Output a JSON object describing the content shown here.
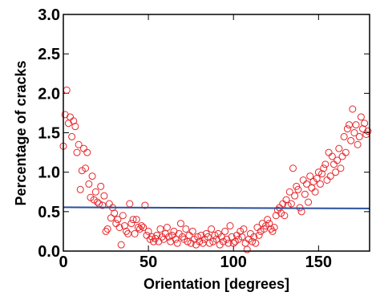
{
  "chart_data": {
    "type": "scatter",
    "x_label": "Orientation [degrees]",
    "y_label": "Percentage of cracks",
    "xlim": [
      0,
      180
    ],
    "xticks": [
      0,
      50,
      100,
      150
    ],
    "ylim": [
      0,
      3
    ],
    "yticks": [
      {
        "value": 0,
        "label": "0.0"
      },
      0.5,
      {
        "value": 1,
        "label": "1.0"
      },
      1.5,
      {
        "value": 2,
        "label": "2.0"
      },
      2.5,
      {
        "value": 3,
        "label": "3.0"
      }
    ],
    "series": [
      {
        "color": "#e8262b",
        "marker": "open-circle",
        "x": [
          0,
          1,
          2,
          3,
          4,
          5,
          6,
          7,
          8,
          9,
          10,
          11,
          12,
          13,
          14,
          15,
          16,
          17,
          18,
          19,
          20,
          21,
          22,
          23,
          24,
          25,
          26,
          27,
          28,
          29,
          30,
          31,
          32,
          33,
          34,
          35,
          36,
          37,
          38,
          39,
          40,
          41,
          42,
          43,
          44,
          45,
          46,
          47,
          48,
          49,
          50,
          51,
          52,
          53,
          54,
          55,
          56,
          57,
          58,
          59,
          60,
          61,
          62,
          63,
          64,
          65,
          66,
          67,
          68,
          69,
          70,
          71,
          72,
          73,
          74,
          75,
          76,
          77,
          78,
          79,
          80,
          81,
          82,
          83,
          84,
          85,
          86,
          87,
          88,
          89,
          90,
          91,
          92,
          93,
          94,
          95,
          96,
          97,
          98,
          99,
          100,
          101,
          102,
          103,
          104,
          105,
          106,
          107,
          108,
          109,
          110,
          111,
          112,
          113,
          114,
          115,
          116,
          117,
          118,
          119,
          120,
          121,
          122,
          123,
          124,
          125,
          126,
          127,
          128,
          129,
          130,
          131,
          132,
          133,
          134,
          135,
          136,
          137,
          138,
          139,
          140,
          141,
          142,
          143,
          144,
          145,
          146,
          147,
          148,
          149,
          150,
          151,
          152,
          153,
          154,
          155,
          156,
          157,
          158,
          159,
          160,
          161,
          162,
          163,
          164,
          165,
          166,
          167,
          168,
          169,
          170,
          171,
          172,
          173,
          174,
          175,
          176,
          177,
          178,
          179
        ],
        "values": [
          1.33,
          1.73,
          2.04,
          1.62,
          1.7,
          1.45,
          1.65,
          1.58,
          1.25,
          1.35,
          0.78,
          1.02,
          1.3,
          1.05,
          1.25,
          0.85,
          0.68,
          0.95,
          0.65,
          0.75,
          0.62,
          0.6,
          0.82,
          0.58,
          0.7,
          0.25,
          0.28,
          0.6,
          0.42,
          0.55,
          0.48,
          0.35,
          0.4,
          0.3,
          0.08,
          0.45,
          0.32,
          0.25,
          0.22,
          0.6,
          0.35,
          0.4,
          0.22,
          0.4,
          0.3,
          0.28,
          0.32,
          0.3,
          0.58,
          0.2,
          0.25,
          0.15,
          0.18,
          0.12,
          0.16,
          0.2,
          0.12,
          0.28,
          0.18,
          0.15,
          0.22,
          0.3,
          0.18,
          0.12,
          0.2,
          0.25,
          0.15,
          0.1,
          0.22,
          0.35,
          0.18,
          0.15,
          0.28,
          0.12,
          0.2,
          0.1,
          0.25,
          0.15,
          0.08,
          0.18,
          0.12,
          0.2,
          0.1,
          0.15,
          0.22,
          0.18,
          0.1,
          0.28,
          0.12,
          0.2,
          0.15,
          0.22,
          0.08,
          0.18,
          0.12,
          0.25,
          0.15,
          0.1,
          0.32,
          0.18,
          0.1,
          0.12,
          0.2,
          0.15,
          0.25,
          0.18,
          0.28,
          0.1,
          0.02,
          0.15,
          0.22,
          0.12,
          0.18,
          0.1,
          0.3,
          0.2,
          0.25,
          0.35,
          0.28,
          0.32,
          0.4,
          0.35,
          0.28,
          0.25,
          0.3,
          0.45,
          0.52,
          0.55,
          0.48,
          0.6,
          0.45,
          0.65,
          0.58,
          0.75,
          0.6,
          1.05,
          0.7,
          0.82,
          0.78,
          0.55,
          0.5,
          0.9,
          0.72,
          0.85,
          0.62,
          0.95,
          0.8,
          0.88,
          0.75,
          0.92,
          1.0,
          0.85,
          0.98,
          1.05,
          1.1,
          0.9,
          1.25,
          0.95,
          1.2,
          1.1,
          1.0,
          1.15,
          1.3,
          1.05,
          1.2,
          1.45,
          1.25,
          1.55,
          1.6,
          1.4,
          1.8,
          1.5,
          1.6,
          1.35,
          1.45,
          1.7,
          1.55,
          1.62,
          1.48,
          1.52
        ]
      },
      {
        "type": "line",
        "color": "#2a4f9c",
        "x": [
          0,
          180
        ],
        "values": [
          0.555,
          0.54
        ]
      }
    ]
  }
}
